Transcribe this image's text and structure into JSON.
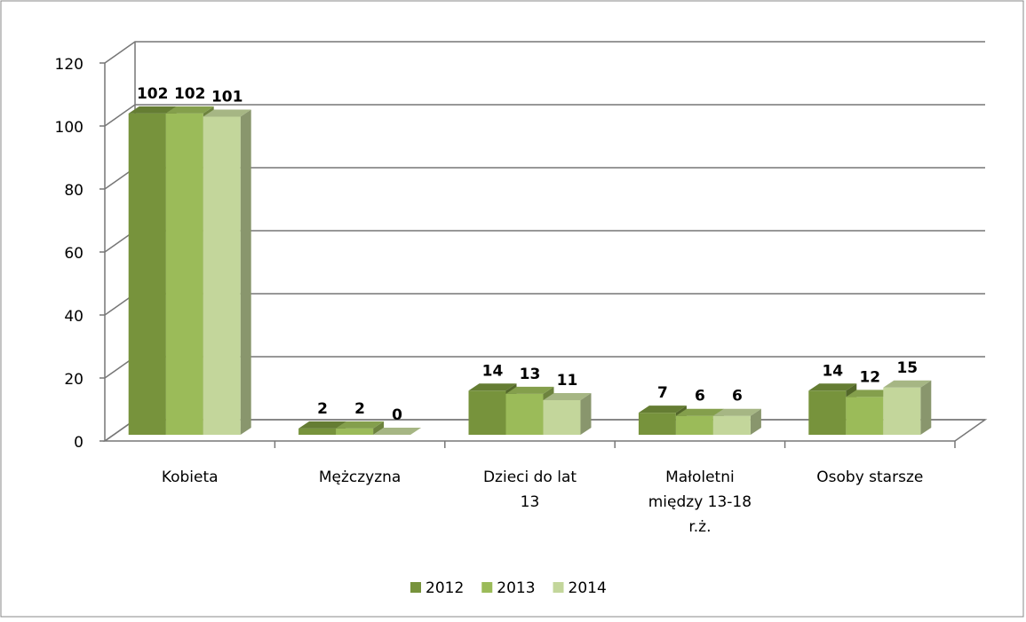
{
  "chart_data": {
    "type": "bar3d",
    "categories": [
      "Kobieta",
      "Mężczyzna",
      "Dzieci do lat 13",
      "Małoletni między 13-18 r.ż.",
      "Osoby starsze"
    ],
    "series": [
      {
        "name": "2012",
        "color": "#77933c",
        "values": [
          102,
          2,
          14,
          7,
          14
        ]
      },
      {
        "name": "2013",
        "color": "#9bbb59",
        "values": [
          102,
          2,
          13,
          6,
          12
        ]
      },
      {
        "name": "2014",
        "color": "#c3d69b",
        "values": [
          101,
          0,
          11,
          6,
          15
        ]
      }
    ],
    "ylim": [
      0,
      120
    ],
    "yticks": [
      0,
      20,
      40,
      60,
      80,
      100,
      120
    ],
    "grid": true,
    "legend": "bottom"
  }
}
